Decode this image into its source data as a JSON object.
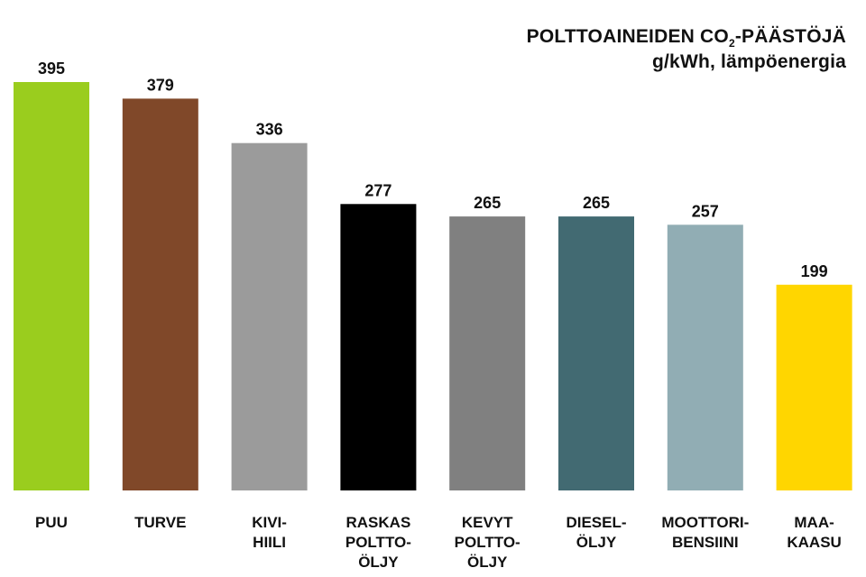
{
  "title": {
    "line1_prefix": "POLTTOAINEIDEN CO",
    "line1_subscript": "2",
    "line1_suffix": "-PÄÄSTÖJÄ",
    "line2": "g/kWh, lämpöenergia"
  },
  "chart_data": {
    "type": "bar",
    "title": "POLTTOAINEIDEN CO2-PÄÄSTÖJÄ",
    "subtitle": "g/kWh, lämpöenergia",
    "categories": [
      [
        "PUU"
      ],
      [
        "TURVE"
      ],
      [
        "KIVI-",
        "HIILI"
      ],
      [
        "RASKAS",
        "POLTTO-",
        "ÖLJY"
      ],
      [
        "KEVYT",
        "POLTTO-",
        "ÖLJY"
      ],
      [
        "DIESEL-",
        "ÖLJY"
      ],
      [
        "MOOTTORI-",
        "BENSIINI"
      ],
      [
        "MAA-",
        "KAASU"
      ]
    ],
    "values": [
      395,
      379,
      336,
      277,
      265,
      265,
      257,
      199
    ],
    "colors": [
      "#9ACD1E",
      "#804829",
      "#9B9B9B",
      "#000000",
      "#808080",
      "#426A72",
      "#91ADB4",
      "#FFD600"
    ],
    "data_labels": [
      "395",
      "379",
      "336",
      "277",
      "265",
      "265",
      "257",
      "199"
    ],
    "ylim": [
      0,
      400
    ],
    "grid": false,
    "legend": "none",
    "xlabel": "",
    "ylabel": ""
  }
}
